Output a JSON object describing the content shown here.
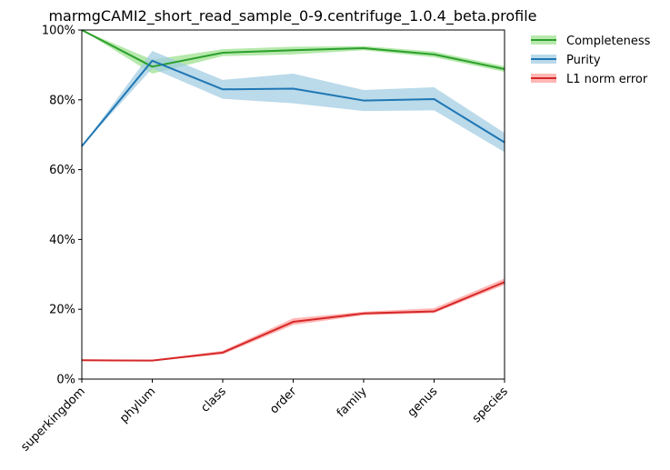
{
  "chart_data": {
    "type": "line",
    "title": "marmgCAMI2_short_read_sample_0-9.centrifuge_1.0.4_beta.profile",
    "xlabel": "",
    "ylabel": "",
    "categories": [
      "superkingdom",
      "phylum",
      "class",
      "order",
      "family",
      "genus",
      "species"
    ],
    "ylim": [
      0,
      100
    ],
    "yticks": [
      "0%",
      "20%",
      "40%",
      "60%",
      "80%",
      "100%"
    ],
    "ytick_values": [
      0,
      20,
      40,
      60,
      80,
      100
    ],
    "grid": false,
    "legend_position": "outside-top-right",
    "series": [
      {
        "name": "Completeness",
        "color": "#2ca02c",
        "band_color": "#98df8a",
        "values": [
          100,
          89.5,
          93.5,
          94.2,
          94.8,
          93.0,
          88.8
        ],
        "lower": [
          100,
          87.5,
          92.5,
          93.0,
          94.2,
          92.2,
          88.0
        ],
        "upper": [
          100,
          91.5,
          94.5,
          95.2,
          95.4,
          93.8,
          89.6
        ]
      },
      {
        "name": "Purity",
        "color": "#1f77b4",
        "band_color": "#9ecae1",
        "values": [
          66.7,
          91.2,
          83.0,
          83.2,
          79.8,
          80.2,
          67.8
        ],
        "lower": [
          66.7,
          89.0,
          80.3,
          79.0,
          76.8,
          77.0,
          65.0
        ],
        "upper": [
          66.7,
          94.0,
          85.7,
          87.5,
          82.8,
          83.6,
          70.5
        ]
      },
      {
        "name": "L1 norm error",
        "color": "#d62728",
        "band_color": "#ff9896",
        "values": [
          5.4,
          5.3,
          7.6,
          16.4,
          18.8,
          19.4,
          27.8
        ],
        "lower": [
          5.2,
          5.1,
          7.1,
          15.5,
          18.3,
          18.9,
          27.0
        ],
        "upper": [
          5.6,
          5.5,
          8.1,
          17.4,
          19.3,
          20.3,
          28.8
        ]
      }
    ]
  }
}
